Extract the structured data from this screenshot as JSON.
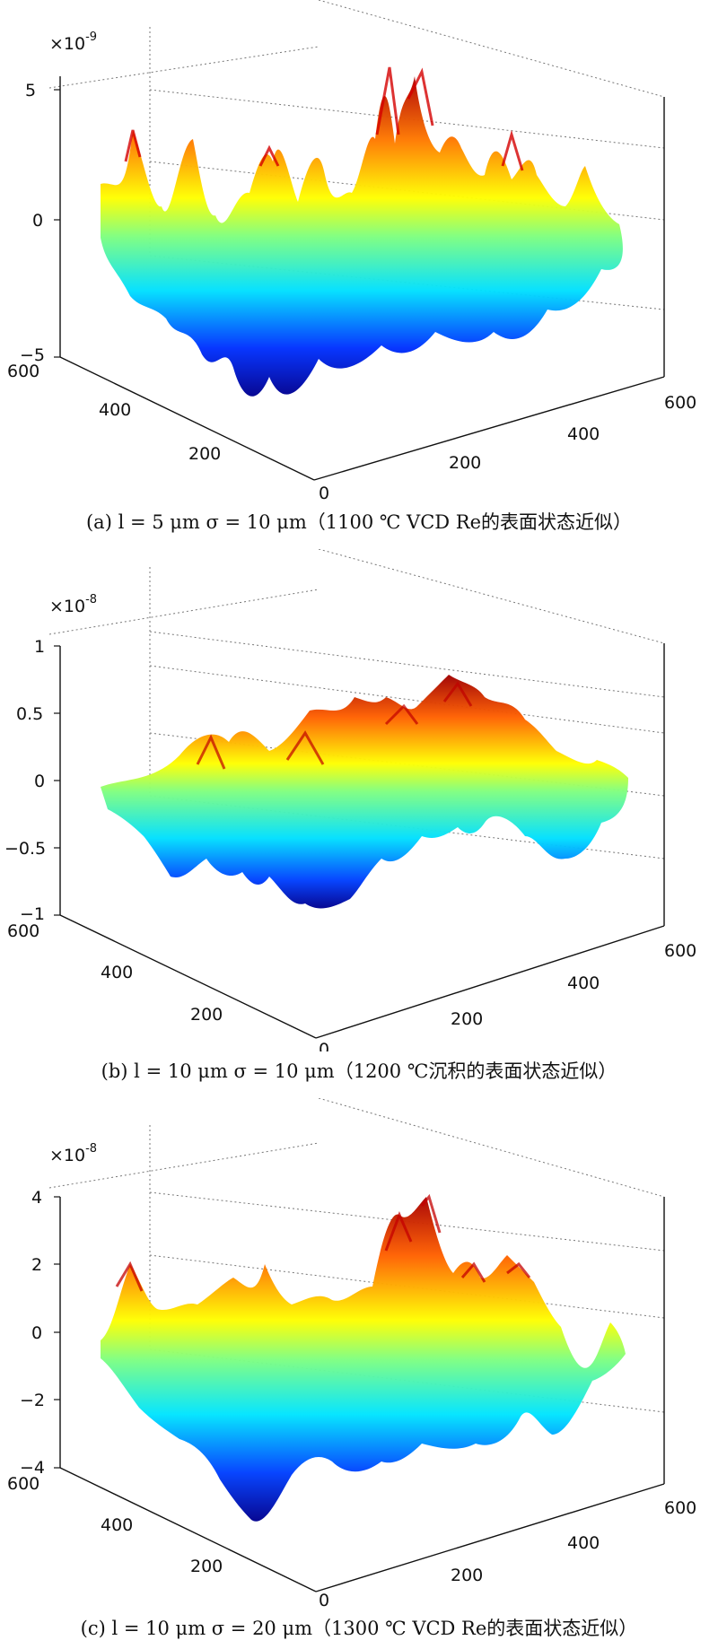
{
  "chart_data": [
    {
      "type": "surface",
      "panel_label": "(a)",
      "caption": "(a) l = 5 μm   σ = 10 μm（1100 ℃ VCD Re的表面状态近似）",
      "z_exponent_label": "×10",
      "z_exponent": "-9",
      "z_ticks": [
        "5",
        "0",
        "−5"
      ],
      "zlim": [
        -5e-09,
        5e-09
      ],
      "x_ticks": [
        "600",
        "400",
        "200"
      ],
      "y_ticks": [
        "600",
        "400",
        "200"
      ],
      "origin_label": "0",
      "xlim": [
        0,
        600
      ],
      "ylim": [
        0,
        600
      ],
      "colormap": "jet",
      "grid": true,
      "correlation_length_um": 5,
      "rms_roughness_um": 10
    },
    {
      "type": "surface",
      "panel_label": "(b)",
      "caption": "(b) l = 10 μm   σ = 10 μm（1200 ℃沉积的表面状态近似）",
      "z_exponent_label": "×10",
      "z_exponent": "-8",
      "z_ticks": [
        "1",
        "0.5",
        "0",
        "−0.5",
        "−1"
      ],
      "zlim": [
        -1e-08,
        1e-08
      ],
      "x_ticks": [
        "600",
        "400",
        "200"
      ],
      "y_ticks": [
        "600",
        "400",
        "200"
      ],
      "origin_label": "0",
      "xlim": [
        0,
        600
      ],
      "ylim": [
        0,
        600
      ],
      "colormap": "jet",
      "grid": true,
      "correlation_length_um": 10,
      "rms_roughness_um": 10
    },
    {
      "type": "surface",
      "panel_label": "(c)",
      "caption": "(c) l = 10 μm   σ = 20 μm（1300 ℃ VCD Re的表面状态近似）",
      "z_exponent_label": "×10",
      "z_exponent": "-8",
      "z_ticks": [
        "4",
        "2",
        "0",
        "−2",
        "−4"
      ],
      "zlim": [
        -4e-08,
        4e-08
      ],
      "x_ticks": [
        "600",
        "400",
        "200"
      ],
      "y_ticks": [
        "600",
        "400",
        "200"
      ],
      "origin_label": "0",
      "xlim": [
        0,
        600
      ],
      "ylim": [
        0,
        600
      ],
      "colormap": "jet",
      "grid": true,
      "correlation_length_um": 10,
      "rms_roughness_um": 20
    }
  ]
}
